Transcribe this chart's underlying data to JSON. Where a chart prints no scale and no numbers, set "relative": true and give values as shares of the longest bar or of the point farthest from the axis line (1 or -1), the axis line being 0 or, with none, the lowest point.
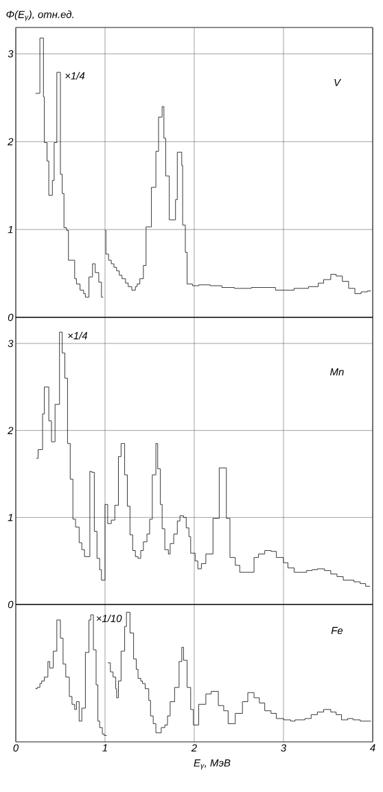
{
  "chart_data": [
    {
      "type": "step",
      "ylabel": "Φ(E$_{γ}$), отн.ед.",
      "color": "#222222",
      "grid": true,
      "tick_labels": "y",
      "xlim": [
        0,
        4
      ],
      "xticks": [
        0,
        1,
        2,
        3,
        4
      ],
      "ylim": [
        0,
        3.3
      ],
      "yticks": [
        0,
        1,
        2,
        3
      ],
      "annotations": [
        {
          "text": "×1/4",
          "x": 0.49,
          "y": 2.79
        },
        "V"
      ],
      "x": [
        0.22,
        0.27,
        0.31,
        0.32,
        0.35,
        0.37,
        0.41,
        0.43,
        0.46,
        0.5,
        0.52,
        0.54,
        0.57,
        0.59,
        0.66,
        0.68,
        0.72,
        0.76,
        0.78,
        0.82,
        0.86,
        0.89,
        0.93,
        0.96,
        0.98,
        1.0,
        1.01,
        1.04,
        1.07,
        1.1,
        1.13,
        1.16,
        1.19,
        1.23,
        1.26,
        1.3,
        1.34,
        1.36,
        1.39,
        1.43,
        1.46,
        1.52,
        1.57,
        1.6,
        1.64,
        1.66,
        1.68,
        1.72,
        1.79,
        1.81,
        1.86,
        1.87,
        1.9,
        1.92,
        1.98,
        2.05,
        2.18,
        2.31,
        2.45,
        2.64,
        2.91,
        3.12,
        3.28,
        3.39,
        3.45,
        3.53,
        3.59,
        3.66,
        3.73,
        3.8,
        3.87,
        3.94,
        3.98
      ],
      "values": [
        2.55,
        3.18,
        2.51,
        1.99,
        1.78,
        1.39,
        1.56,
        1.99,
        2.79,
        1.63,
        1.41,
        1.02,
        0.99,
        0.65,
        0.44,
        0.38,
        0.31,
        0.27,
        0.23,
        0.46,
        0.61,
        0.51,
        0.4,
        0.23,
        null,
        0.99,
        0.72,
        0.65,
        0.61,
        0.57,
        0.53,
        0.48,
        0.44,
        0.39,
        0.35,
        0.31,
        0.35,
        0.38,
        0.44,
        0.59,
        1.03,
        1.48,
        1.89,
        2.28,
        2.4,
        2.04,
        1.61,
        1.11,
        1.34,
        1.88,
        1.73,
        1.05,
        0.74,
        0.38,
        0.36,
        0.37,
        0.36,
        0.34,
        0.33,
        0.34,
        0.31,
        0.33,
        0.35,
        0.39,
        0.43,
        0.49,
        0.47,
        0.41,
        0.33,
        0.27,
        0.29,
        0.3,
        0.3
      ]
    },
    {
      "type": "step",
      "color": "#222222",
      "grid": true,
      "tick_labels": "y",
      "xlim": [
        0,
        4
      ],
      "xticks": [
        0,
        1,
        2,
        3,
        4
      ],
      "ylim": [
        0,
        3.3
      ],
      "yticks": [
        0,
        1,
        2,
        3
      ],
      "annotations": [
        {
          "text": "×1/4",
          "x": 0.52,
          "y": 3.13
        },
        "Mn"
      ],
      "x": [
        0.23,
        0.25,
        0.3,
        0.32,
        0.37,
        0.4,
        0.44,
        0.49,
        0.52,
        0.55,
        0.58,
        0.61,
        0.64,
        0.67,
        0.71,
        0.74,
        0.77,
        0.83,
        0.85,
        0.88,
        0.91,
        0.94,
        0.96,
        1.0,
        1.03,
        1.07,
        1.11,
        1.15,
        1.18,
        1.22,
        1.25,
        1.28,
        1.31,
        1.34,
        1.37,
        1.4,
        1.43,
        1.47,
        1.5,
        1.53,
        1.57,
        1.59,
        1.62,
        1.64,
        1.67,
        1.71,
        1.73,
        1.77,
        1.81,
        1.84,
        1.88,
        1.91,
        1.94,
        1.96,
        2.01,
        2.04,
        2.08,
        2.13,
        2.21,
        2.28,
        2.36,
        2.4,
        2.46,
        2.51,
        2.67,
        2.72,
        2.79,
        2.86,
        2.92,
        3.0,
        3.05,
        3.12,
        3.26,
        3.32,
        3.38,
        3.46,
        3.53,
        3.6,
        3.67,
        3.79,
        3.86,
        3.92,
        3.97
      ],
      "values": [
        1.68,
        1.78,
        2.19,
        2.5,
        2.11,
        1.87,
        2.3,
        3.13,
        2.89,
        2.6,
        1.85,
        1.44,
        0.98,
        0.89,
        0.71,
        0.63,
        0.55,
        1.53,
        1.52,
        0.84,
        0.53,
        0.4,
        0.28,
        1.15,
        0.93,
        0.97,
        1.14,
        1.7,
        1.85,
        1.49,
        1.13,
        0.8,
        0.62,
        0.55,
        0.53,
        0.62,
        0.72,
        0.81,
        0.98,
        1.49,
        1.85,
        1.56,
        1.15,
        0.87,
        0.63,
        0.58,
        0.7,
        0.81,
        0.96,
        1.02,
        1.0,
        0.88,
        0.78,
        0.59,
        0.5,
        0.41,
        0.47,
        0.58,
        0.99,
        1.57,
        0.99,
        0.54,
        0.45,
        0.37,
        0.54,
        0.58,
        0.62,
        0.61,
        0.54,
        0.48,
        0.42,
        0.37,
        0.39,
        0.4,
        0.41,
        0.39,
        0.35,
        0.32,
        0.28,
        0.26,
        0.24,
        0.21,
        0.21
      ]
    },
    {
      "type": "step",
      "xlabel": "E$_{γ}$, МэВ",
      "color": "#222222",
      "grid": "x",
      "tick_labels": "x",
      "relative": true,
      "xlim": [
        0,
        4
      ],
      "xticks": [
        0,
        1,
        2,
        3,
        4
      ],
      "annotations": [
        {
          "text": "×1/10",
          "x": 0.84,
          "y": 0.98
        },
        "Fe"
      ],
      "x": [
        0.22,
        0.24,
        0.27,
        0.29,
        0.32,
        0.36,
        0.38,
        0.42,
        0.46,
        0.5,
        0.53,
        0.56,
        0.6,
        0.63,
        0.66,
        0.68,
        0.71,
        0.74,
        0.78,
        0.82,
        0.84,
        0.87,
        0.9,
        0.92,
        0.94,
        0.97,
        0.99,
        1.02,
        1.03,
        1.06,
        1.09,
        1.12,
        1.13,
        1.15,
        1.18,
        1.22,
        1.24,
        1.28,
        1.32,
        1.35,
        1.37,
        1.4,
        1.42,
        1.45,
        1.49,
        1.51,
        1.54,
        1.57,
        1.63,
        1.67,
        1.7,
        1.73,
        1.78,
        1.83,
        1.86,
        1.88,
        1.92,
        1.96,
        1.99,
        2.05,
        2.13,
        2.19,
        2.27,
        2.33,
        2.38,
        2.46,
        2.54,
        2.6,
        2.67,
        2.73,
        2.79,
        2.86,
        2.92,
        3.0,
        3.08,
        3.13,
        3.24,
        3.31,
        3.38,
        3.45,
        3.53,
        3.59,
        3.65,
        3.72,
        3.78,
        3.86,
        3.92,
        3.98
      ],
      "values": [
        0.41,
        0.42,
        0.45,
        0.47,
        0.5,
        0.62,
        0.57,
        0.7,
        0.94,
        0.8,
        0.6,
        0.5,
        0.35,
        0.29,
        0.25,
        0.31,
        0.16,
        0.26,
        0.69,
        0.94,
        0.98,
        0.71,
        0.44,
        0.16,
        0.11,
        0.06,
        0.05,
        null,
        0.61,
        0.54,
        0.5,
        0.41,
        0.34,
        0.47,
        0.7,
        0.89,
        1.0,
        0.84,
        0.64,
        0.56,
        0.49,
        0.47,
        0.45,
        0.41,
        0.32,
        0.2,
        0.14,
        0.07,
        0.11,
        0.13,
        0.2,
        0.31,
        0.42,
        0.62,
        0.73,
        0.63,
        0.42,
        0.25,
        0.13,
        0.29,
        0.37,
        0.39,
        0.28,
        0.24,
        0.14,
        0.22,
        0.31,
        0.38,
        0.34,
        0.3,
        0.24,
        0.22,
        0.18,
        0.17,
        0.16,
        0.17,
        0.18,
        0.21,
        0.23,
        0.25,
        0.23,
        0.21,
        0.17,
        0.18,
        0.17,
        0.16,
        0.16,
        0.16
      ]
    }
  ]
}
